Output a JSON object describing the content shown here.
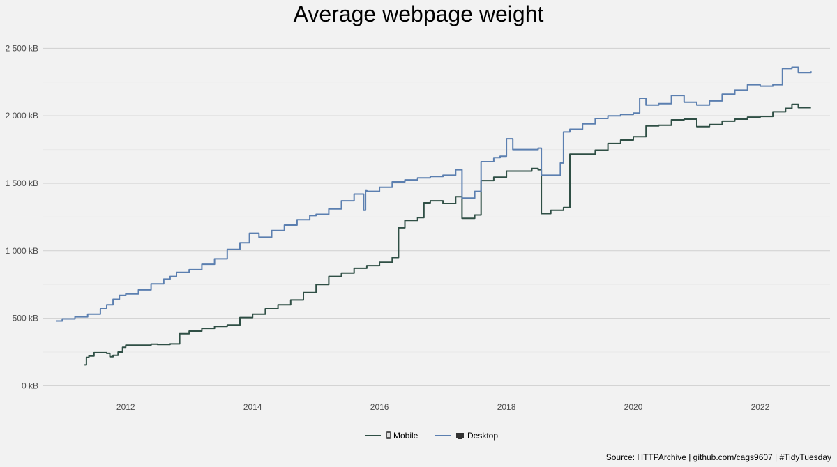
{
  "title": "Average webpage weight",
  "caption": "Source: HTTPArchive | github.com/cags9607 | #TidyTuesday",
  "colors": {
    "mobile": "#2f4f45",
    "desktop": "#5b7fb0",
    "grid": "#cfcfcf",
    "grid_minor": "#e8e8e8"
  },
  "chart_data": {
    "type": "line",
    "title": "Average webpage weight",
    "xlabel": "",
    "ylabel": "",
    "xlim": [
      2010.7,
      2023.1
    ],
    "ylim": [
      -60,
      2600
    ],
    "x_ticks": [
      2012,
      2014,
      2016,
      2018,
      2020,
      2022
    ],
    "x_tick_labels": [
      "2012",
      "2014",
      "2016",
      "2018",
      "2020",
      "2022"
    ],
    "y_ticks": [
      0,
      500,
      1000,
      1500,
      2000,
      2500
    ],
    "y_tick_labels": [
      "0 kB",
      "500 kB",
      "1 000 kB",
      "1 500 kB",
      "2 000 kB",
      "2 500 kB"
    ],
    "grid": true,
    "legend_position": "bottom",
    "series": [
      {
        "name": "Mobile",
        "icon": "mobile-phone-icon",
        "color": "#2f4f45",
        "x": [
          2011.35,
          2011.38,
          2011.42,
          2011.5,
          2011.6,
          2011.7,
          2011.75,
          2011.8,
          2011.88,
          2011.95,
          2012.0,
          2012.2,
          2012.4,
          2012.5,
          2012.7,
          2012.8,
          2012.85,
          2013.0,
          2013.2,
          2013.4,
          2013.6,
          2013.8,
          2014.0,
          2014.2,
          2014.4,
          2014.6,
          2014.8,
          2015.0,
          2015.2,
          2015.4,
          2015.6,
          2015.8,
          2016.0,
          2016.2,
          2016.3,
          2016.4,
          2016.6,
          2016.7,
          2016.8,
          2017.0,
          2017.2,
          2017.3,
          2017.5,
          2017.6,
          2017.8,
          2018.0,
          2018.2,
          2018.4,
          2018.5,
          2018.55,
          2018.7,
          2018.9,
          2019.0,
          2019.2,
          2019.4,
          2019.6,
          2019.8,
          2020.0,
          2020.2,
          2020.4,
          2020.6,
          2020.8,
          2021.0,
          2021.2,
          2021.4,
          2021.6,
          2021.8,
          2022.0,
          2022.2,
          2022.4,
          2022.5,
          2022.6,
          2022.8
        ],
        "values": [
          155,
          210,
          220,
          245,
          245,
          240,
          215,
          225,
          250,
          285,
          300,
          300,
          308,
          305,
          310,
          310,
          385,
          405,
          425,
          440,
          450,
          505,
          530,
          570,
          600,
          635,
          690,
          750,
          810,
          835,
          870,
          890,
          915,
          950,
          1170,
          1225,
          1245,
          1355,
          1370,
          1350,
          1400,
          1240,
          1265,
          1520,
          1545,
          1590,
          1590,
          1610,
          1600,
          1275,
          1300,
          1320,
          1715,
          1715,
          1745,
          1795,
          1820,
          1845,
          1925,
          1930,
          1970,
          1975,
          1920,
          1935,
          1960,
          1975,
          1990,
          1995,
          2030,
          2055,
          2085,
          2060,
          2060
        ]
      },
      {
        "name": "Desktop",
        "icon": "desktop-monitor-icon",
        "color": "#5b7fb0",
        "x": [
          2010.9,
          2011.0,
          2011.2,
          2011.4,
          2011.6,
          2011.7,
          2011.8,
          2011.9,
          2012.0,
          2012.2,
          2012.4,
          2012.6,
          2012.7,
          2012.8,
          2013.0,
          2013.2,
          2013.4,
          2013.6,
          2013.8,
          2013.95,
          2014.1,
          2014.3,
          2014.5,
          2014.7,
          2014.9,
          2015.0,
          2015.2,
          2015.4,
          2015.6,
          2015.75,
          2015.78,
          2015.8,
          2016.0,
          2016.2,
          2016.4,
          2016.6,
          2016.8,
          2017.0,
          2017.2,
          2017.3,
          2017.5,
          2017.6,
          2017.8,
          2017.9,
          2018.0,
          2018.1,
          2018.3,
          2018.5,
          2018.55,
          2018.7,
          2018.85,
          2018.9,
          2019.0,
          2019.2,
          2019.4,
          2019.6,
          2019.8,
          2020.0,
          2020.1,
          2020.2,
          2020.4,
          2020.6,
          2020.8,
          2021.0,
          2021.2,
          2021.4,
          2021.6,
          2021.8,
          2022.0,
          2022.2,
          2022.35,
          2022.5,
          2022.6,
          2022.8
        ],
        "values": [
          480,
          495,
          510,
          530,
          570,
          600,
          640,
          670,
          680,
          710,
          755,
          790,
          810,
          840,
          860,
          900,
          940,
          1010,
          1060,
          1130,
          1100,
          1150,
          1190,
          1230,
          1260,
          1270,
          1310,
          1370,
          1420,
          1300,
          1450,
          1440,
          1470,
          1510,
          1525,
          1540,
          1550,
          1560,
          1600,
          1390,
          1440,
          1660,
          1690,
          1700,
          1830,
          1750,
          1750,
          1760,
          1560,
          1560,
          1650,
          1880,
          1900,
          1940,
          1980,
          2000,
          2010,
          2020,
          2130,
          2080,
          2090,
          2150,
          2100,
          2080,
          2110,
          2160,
          2190,
          2230,
          2220,
          2230,
          2350,
          2360,
          2320,
          2330
        ]
      }
    ]
  }
}
